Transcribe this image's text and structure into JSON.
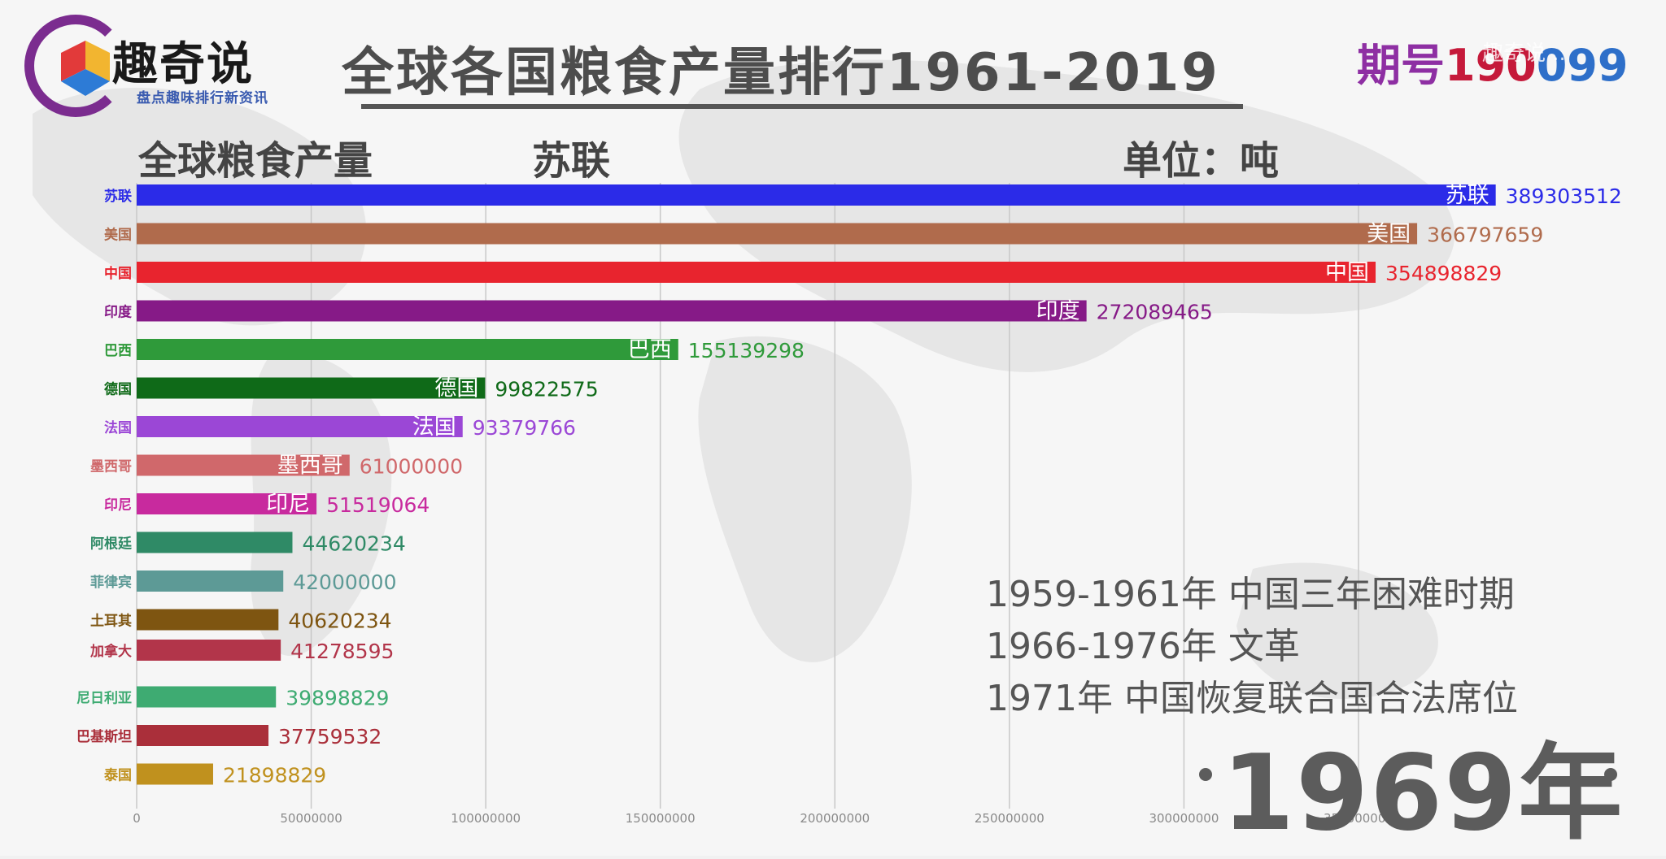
{
  "header": {
    "logo_text": "趣奇说",
    "logo_sub": "盘点趣味排行新资讯",
    "title": "全球各国粮食产量排行1961-2019",
    "issue_label": "期号",
    "issue_number_a": "190",
    "issue_number_b": "099",
    "watermark": "趣奇说 .."
  },
  "subheader": {
    "left": "全球粮食产量",
    "leader": "苏联",
    "unit": "单位：吨"
  },
  "events": [
    "1959-1961年  中国三年困难时期",
    "1966-1976年  文革",
    "1971年  中国恢复联合国合法席位"
  ],
  "year_label": "1969年",
  "colors": {
    "background": "#f1f1f1",
    "title": "#4d4d4d",
    "issue_label": "#8e2fa3",
    "issue_number": "#c5193a"
  },
  "chart_data": {
    "type": "bar",
    "orientation": "horizontal",
    "xlim": [
      0,
      400000000
    ],
    "xticks": [
      0,
      50000000,
      100000000,
      150000000,
      200000000,
      250000000,
      300000000,
      350000000
    ],
    "xtick_labels": [
      "0",
      "50000000",
      "100000000",
      "150000000",
      "200000000",
      "250000000",
      "300000000",
      "350000000"
    ],
    "grid": true,
    "bars": [
      {
        "name": "苏联",
        "value": 389303512,
        "color": "#2b2be8",
        "inner_label": true
      },
      {
        "name": "美国",
        "value": 366797659,
        "color": "#b06b4c",
        "inner_label": true
      },
      {
        "name": "中国",
        "value": 354898829,
        "color": "#e8242e",
        "inner_label": true
      },
      {
        "name": "印度",
        "value": 272089465,
        "color": "#861a87",
        "inner_label": true
      },
      {
        "name": "巴西",
        "value": 155139298,
        "color": "#2f9a3a",
        "inner_label": true
      },
      {
        "name": "德国",
        "value": 99822575,
        "color": "#0f6a18",
        "inner_label": true
      },
      {
        "name": "法国",
        "value": 93379766,
        "color": "#9b47d6",
        "inner_label": true
      },
      {
        "name": "墨西哥",
        "value": 61000000,
        "color": "#d0686b",
        "inner_label": true
      },
      {
        "name": "印尼",
        "value": 51519064,
        "color": "#c82a9e",
        "inner_label": true
      },
      {
        "name": "阿根廷",
        "value": 44620234,
        "color": "#2f8a66",
        "inner_label": false
      },
      {
        "name": "菲律宾",
        "value": 42000000,
        "color": "#5d9a96",
        "inner_label": false
      },
      {
        "name": "土耳其",
        "value": 40620234,
        "color": "#7e5511",
        "inner_label": false
      },
      {
        "name": "加拿大",
        "value": 41278595,
        "color": "#b2354a",
        "inner_label": false
      },
      {
        "name": "尼日利亚",
        "value": 39898829,
        "color": "#3eab72",
        "inner_label": false
      },
      {
        "name": "巴基斯坦",
        "value": 37759532,
        "color": "#aa2f3a",
        "inner_label": false
      },
      {
        "name": "泰国",
        "value": 21898829,
        "color": "#c0911e",
        "inner_label": false
      }
    ]
  }
}
